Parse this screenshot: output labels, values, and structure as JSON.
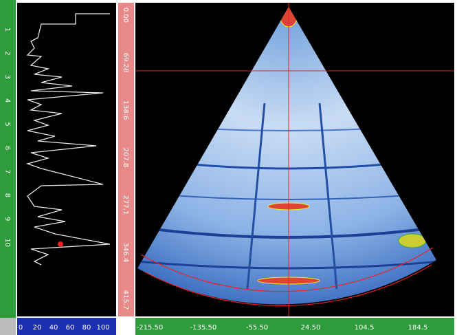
{
  "ascan": {
    "depth_labels": [
      "1",
      "2",
      "3",
      "4",
      "5",
      "6",
      "7",
      "8",
      "9",
      "10"
    ],
    "amplitude_labels": [
      "0",
      "20",
      "40",
      "60",
      "80",
      "100"
    ]
  },
  "sscan": {
    "depth_labels": [
      "0.00",
      "69.28",
      "138.6",
      "207.8",
      "277.1",
      "346.4",
      "415.7"
    ],
    "position_labels": [
      "-215.50",
      "-135.50",
      "-55.50",
      "24.50",
      "104.5",
      "184.5"
    ]
  }
}
